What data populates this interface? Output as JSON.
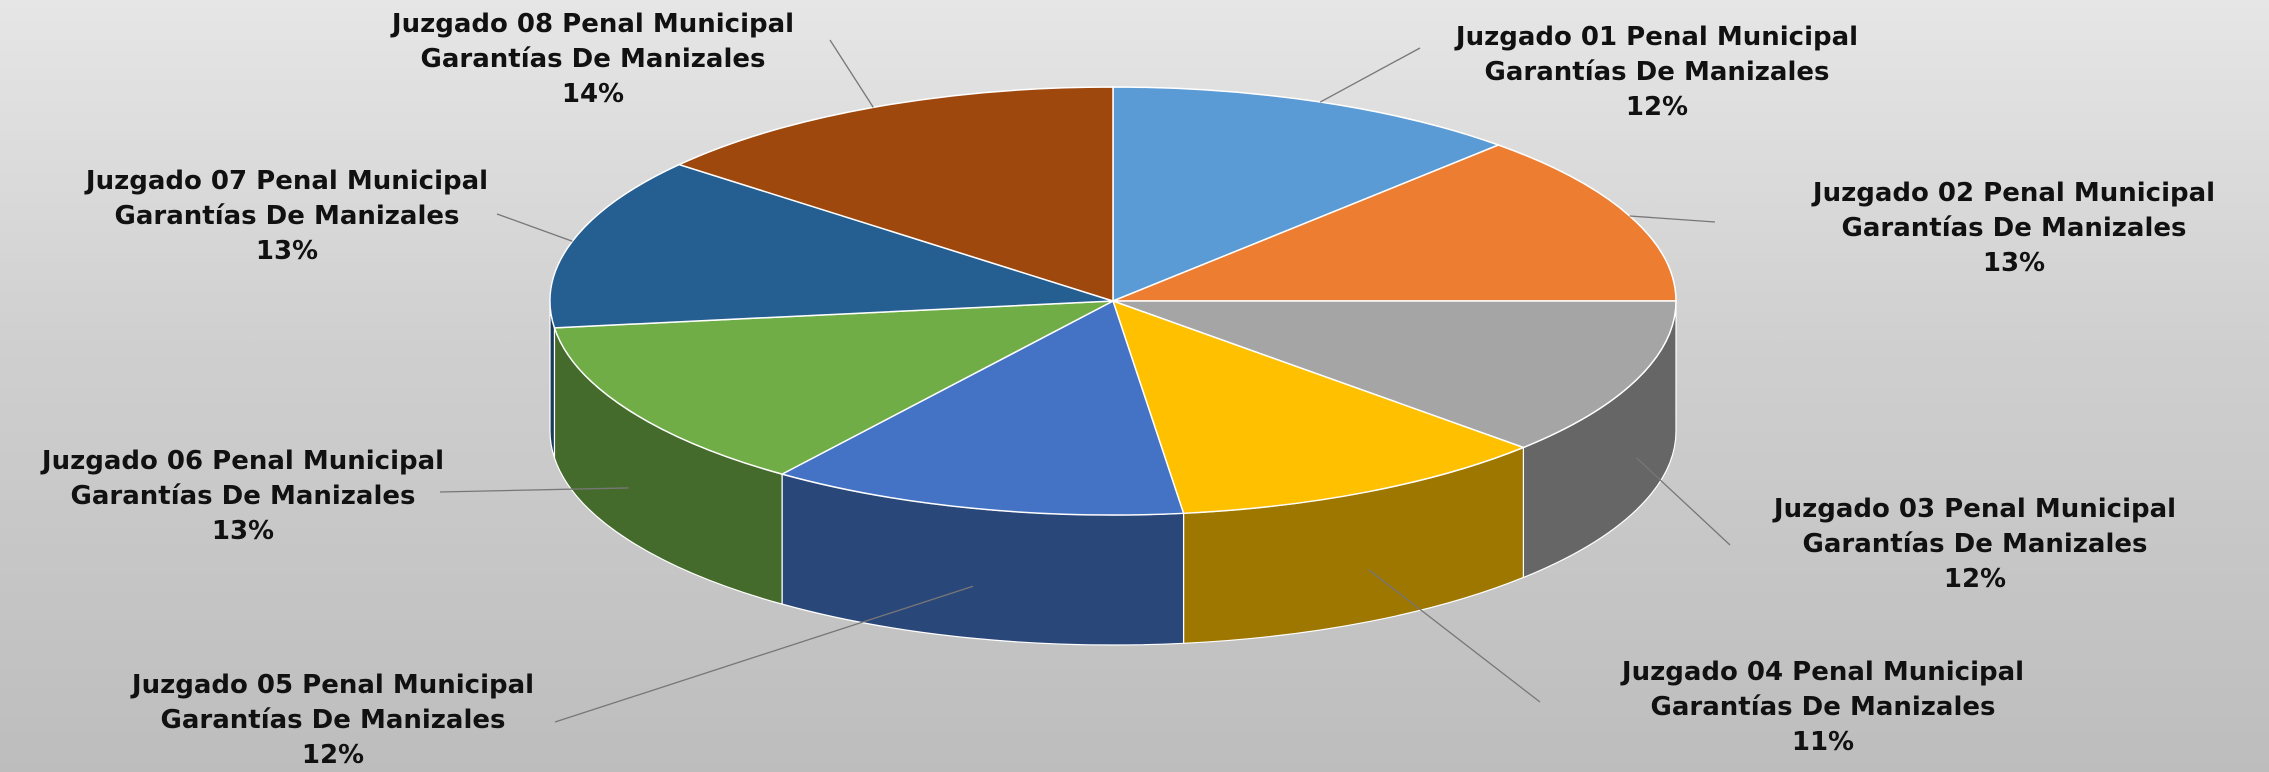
{
  "chart_data": {
    "type": "pie",
    "categories": [
      "Juzgado 01 Penal Municipal Garantías De Manizales",
      "Juzgado 02 Penal Municipal Garantías De Manizales",
      "Juzgado 03 Penal Municipal Garantías De Manizales",
      "Juzgado 04 Penal Municipal Garantías De Manizales",
      "Juzgado 05 Penal Municipal Garantías De Manizales",
      "Juzgado 06 Penal Municipal Garantías De Manizales",
      "Juzgado 07 Penal Municipal Garantías De Manizales",
      "Juzgado 08 Penal Municipal Garantías De Manizales"
    ],
    "values": [
      12,
      13,
      12,
      11,
      12,
      13,
      13,
      14
    ],
    "value_labels": [
      "12%",
      "13%",
      "12%",
      "11%",
      "12%",
      "13%",
      "13%",
      "14%"
    ],
    "colors": [
      "#5b9bd5",
      "#ed7d31",
      "#a5a5a5",
      "#ffc000",
      "#4472c4",
      "#70ad47",
      "#255e91",
      "#9e480e"
    ]
  }
}
